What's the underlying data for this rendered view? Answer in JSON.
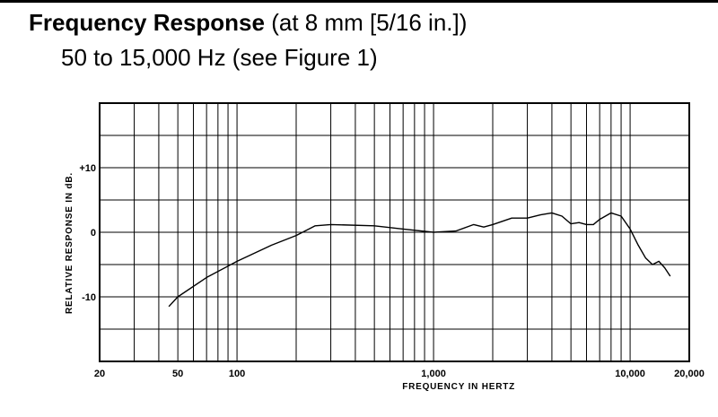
{
  "header": {
    "title_bold": "Frequency Response",
    "title_rest": " (at 8 mm [5/16 in.])",
    "subtitle": "50 to 15,000 Hz (see Figure 1)"
  },
  "chart_data": {
    "type": "line",
    "title": "Frequency Response",
    "xlabel": "FREQUENCY IN HERTZ",
    "ylabel": "RELATIVE RESPONSE IN dB.",
    "xscale": "log",
    "xlim": [
      20,
      20000
    ],
    "ylim": [
      -20,
      20
    ],
    "xticks": [
      {
        "value": 20,
        "label": "20"
      },
      {
        "value": 50,
        "label": "50"
      },
      {
        "value": 100,
        "label": "100"
      },
      {
        "value": 1000,
        "label": "1,000"
      },
      {
        "value": 10000,
        "label": "10,000"
      },
      {
        "value": 20000,
        "label": "20,000"
      }
    ],
    "yticks": [
      {
        "value": 10,
        "label": "+10"
      },
      {
        "value": 0,
        "label": "0"
      },
      {
        "value": -10,
        "label": "-10"
      }
    ],
    "x_gridlines": [
      20,
      30,
      40,
      50,
      60,
      70,
      80,
      90,
      100,
      200,
      300,
      400,
      500,
      600,
      700,
      800,
      900,
      1000,
      2000,
      3000,
      4000,
      5000,
      6000,
      7000,
      8000,
      9000,
      10000,
      20000
    ],
    "y_gridlines": [
      -20,
      -15,
      -10,
      -5,
      0,
      5,
      10,
      15,
      20
    ],
    "grid": true,
    "series": [
      {
        "x": [
          45,
          50,
          70,
          100,
          150,
          200,
          250,
          300,
          500,
          700,
          1000,
          1300,
          1600,
          1800,
          2000,
          2500,
          3000,
          3500,
          4000,
          4500,
          5000,
          5500,
          6000,
          6500,
          7000,
          8000,
          9000,
          10000,
          11000,
          12000,
          13000,
          14000,
          15000,
          16000
        ],
        "y": [
          -11.5,
          -10.0,
          -7.0,
          -4.5,
          -2.0,
          -0.5,
          1.0,
          1.2,
          1.0,
          0.5,
          0.0,
          0.2,
          1.2,
          0.8,
          1.2,
          2.2,
          2.2,
          2.7,
          3.0,
          2.5,
          1.3,
          1.5,
          1.2,
          1.2,
          2.0,
          3.0,
          2.5,
          0.5,
          -2.0,
          -4.0,
          -5.0,
          -4.5,
          -5.5,
          -6.8
        ]
      }
    ]
  }
}
